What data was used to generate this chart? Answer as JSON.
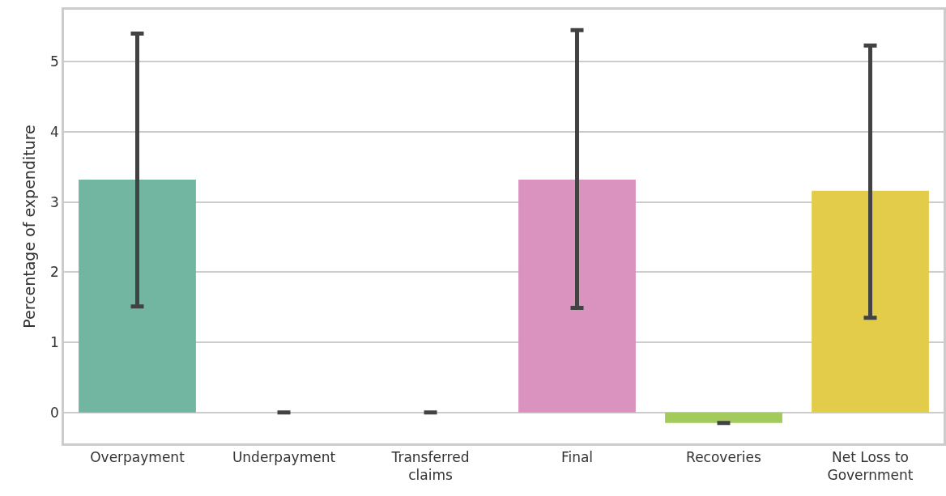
{
  "chart_data": {
    "type": "bar",
    "ylabel": "Percentage of expenditure",
    "categories": [
      "Overpayment",
      "Underpayment",
      "Transferred claims",
      "Final",
      "Recoveries",
      "Net Loss to Government"
    ],
    "values": [
      3.32,
      0,
      0,
      3.32,
      -0.15,
      3.16
    ],
    "colors": [
      "#72b6a1",
      "#e5946d",
      "#95a3c3",
      "#da93bf",
      "#a3ca5c",
      "#e4cc4b"
    ],
    "errors": [
      [
        1.51,
        5.4
      ],
      0,
      0,
      [
        1.49,
        5.45
      ],
      0,
      [
        1.35,
        5.23
      ]
    ],
    "ylim": [
      -0.44,
      5.74
    ],
    "yticks": [
      0,
      1,
      2,
      3,
      4,
      5
    ],
    "grid": "y"
  }
}
